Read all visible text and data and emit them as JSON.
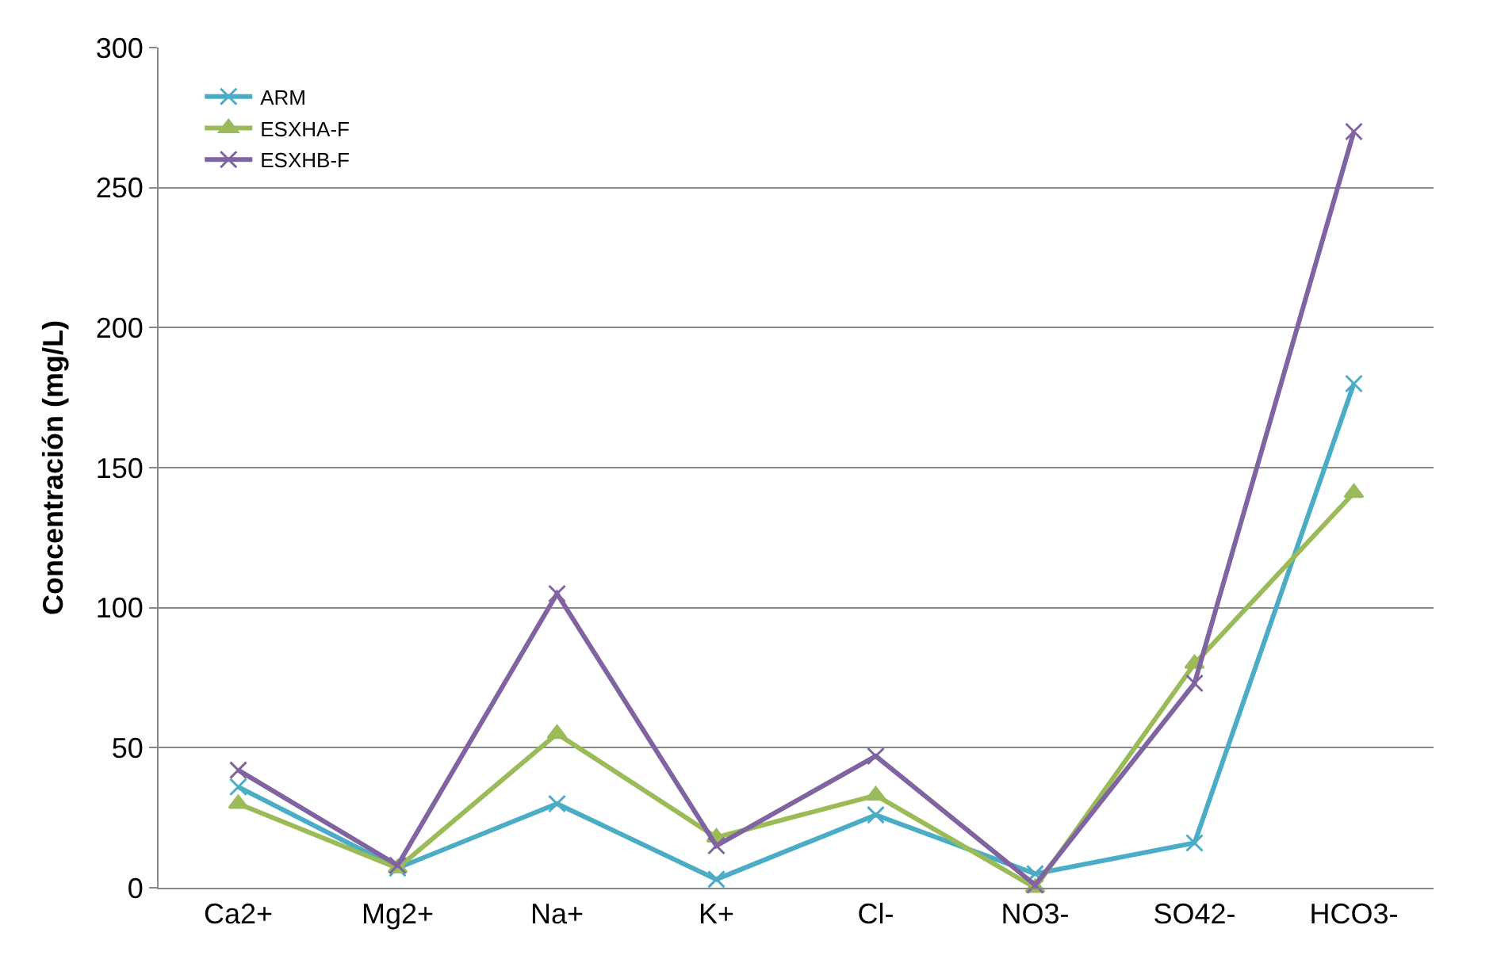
{
  "chart_data": {
    "type": "line",
    "ylabel": "Concentración (mg/L)",
    "categories": [
      "Ca2+",
      "Mg2+",
      "Na+",
      "K+",
      "Cl-",
      "NO3-",
      "SO42-",
      "HCO3-"
    ],
    "series": [
      {
        "name": "ARM",
        "color": "#4bacc6",
        "marker": "cross",
        "values": [
          36,
          7,
          30,
          3,
          26,
          5,
          16,
          180
        ]
      },
      {
        "name": "ESXHA-F",
        "color": "#9bbb59",
        "marker": "triangle",
        "values": [
          30,
          7,
          55,
          18,
          33,
          0,
          80,
          141
        ]
      },
      {
        "name": "ESXHB-F",
        "color": "#8064a2",
        "marker": "cross",
        "values": [
          42,
          8,
          105,
          15,
          47,
          1,
          73,
          270
        ]
      }
    ],
    "ylim": [
      0,
      300
    ],
    "yticks": [
      0,
      50,
      100,
      150,
      200,
      250,
      300
    ],
    "grid": "y",
    "legend": "top left",
    "line_style": "solid"
  }
}
